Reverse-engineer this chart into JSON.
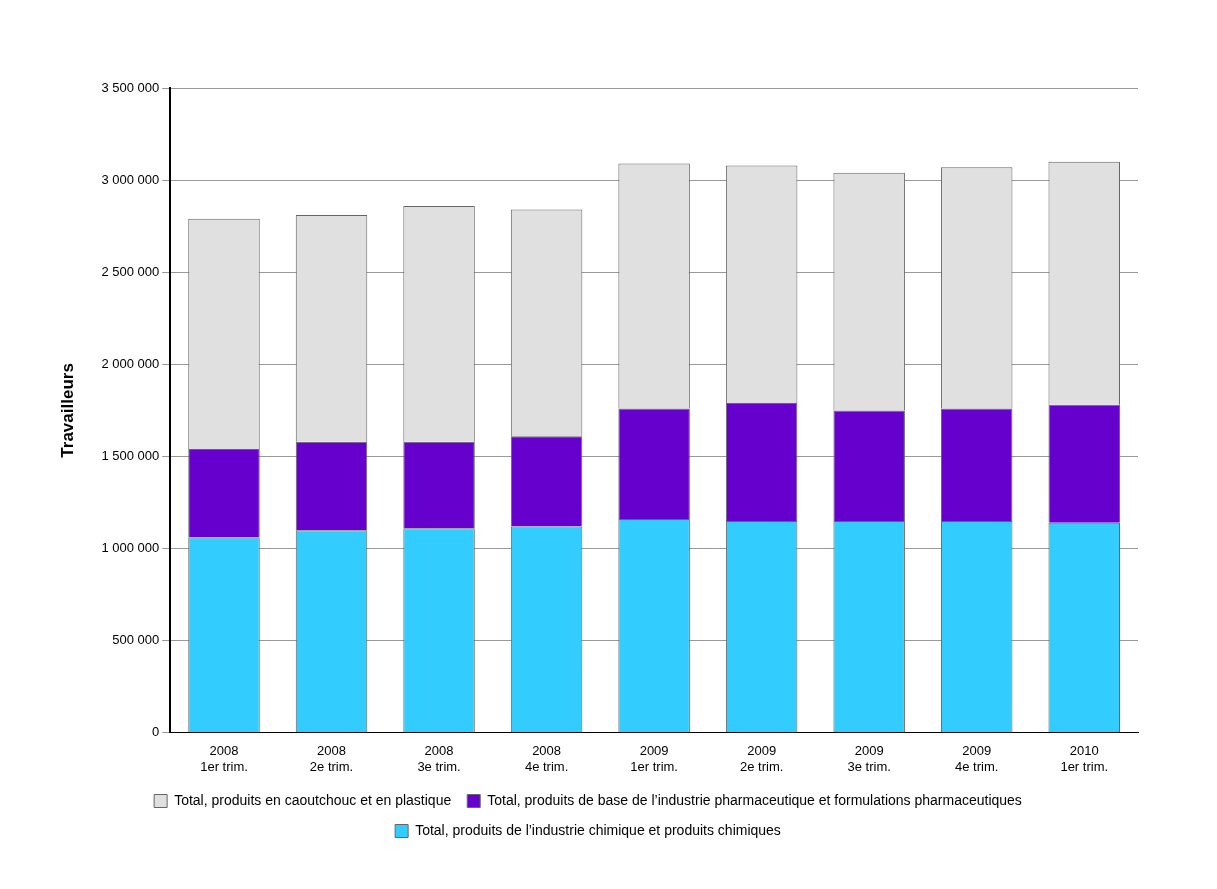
{
  "chart_data": {
    "type": "bar",
    "stacked": true,
    "ylabel": "Travailleurs",
    "categories": [
      "2008\n1er trim.",
      "2008\n2e trim.",
      "2008\n3e trim.",
      "2008\n4e trim.",
      "2009\n1er trim.",
      "2009\n2e trim.",
      "2009\n3e trim.",
      "2009\n4e trim.",
      "2010\n1er trim."
    ],
    "series": [
      {
        "name": "Total, produits de l’industrie chimique et produits chimiques",
        "color": "#33ccff",
        "values": [
          1060000,
          1100000,
          1110000,
          1120000,
          1160000,
          1150000,
          1150000,
          1150000,
          1140000
        ]
      },
      {
        "name": "Total, produits de base de l’industrie pharmaceutique et formulations pharmaceutiques",
        "color": "#6600cc",
        "values": [
          480000,
          480000,
          470000,
          490000,
          600000,
          640000,
          600000,
          610000,
          640000
        ]
      },
      {
        "name": "Total, produits en caoutchouc et en plastique",
        "color": "#e0e0e0",
        "values": [
          1250000,
          1230000,
          1280000,
          1230000,
          1330000,
          1290000,
          1290000,
          1310000,
          1320000
        ]
      }
    ],
    "ylim": [
      0,
      3500000
    ],
    "yticks": [
      0,
      {
        "value": 500000,
        "label": "500 000"
      },
      {
        "value": 1000000,
        "label": "1 000 000"
      },
      {
        "value": 1500000,
        "label": "1 500 000"
      },
      {
        "value": 2000000,
        "label": "2 000 000"
      },
      {
        "value": 2500000,
        "label": "2 500 000"
      },
      {
        "value": 3000000,
        "label": "3 000 000"
      },
      {
        "value": 3500000,
        "label": "3 500 000"
      }
    ],
    "grid": "y",
    "legend": "bottom"
  }
}
